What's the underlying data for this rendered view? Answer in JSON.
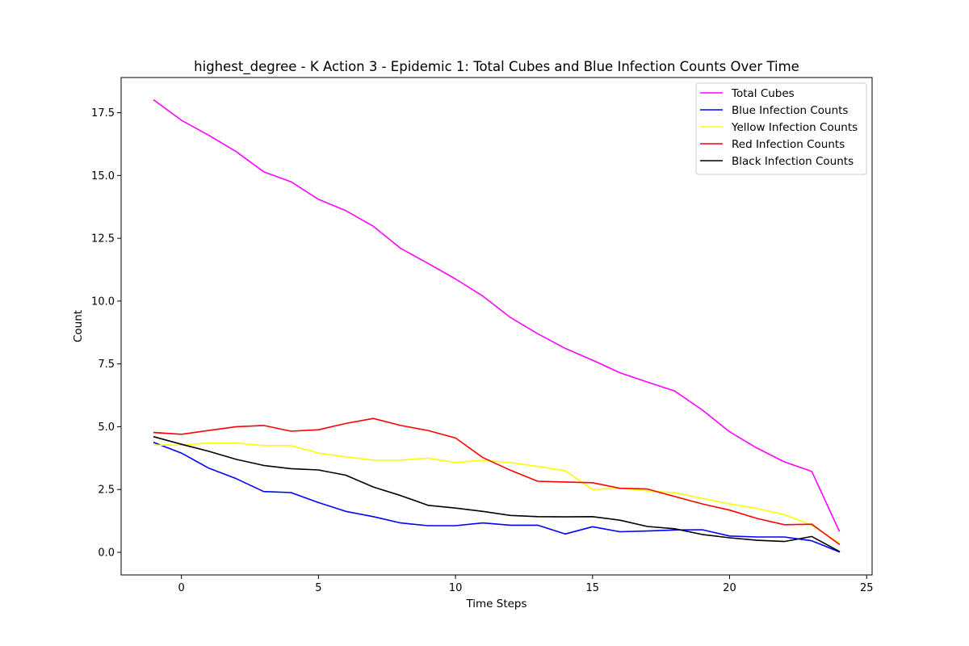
{
  "chart_data": {
    "type": "line",
    "title": "highest_degree - K Action 3 - Epidemic 1: Total Cubes and Blue Infection Counts Over Time",
    "xlabel": "Time Steps",
    "ylabel": "Count",
    "xlim": [
      -2.2,
      25.2
    ],
    "ylim": [
      -0.9,
      18.9
    ],
    "xticks": [
      0,
      5,
      10,
      15,
      20,
      25
    ],
    "yticks": [
      0.0,
      2.5,
      5.0,
      7.5,
      10.0,
      12.5,
      15.0,
      17.5
    ],
    "xtick_labels": [
      "0",
      "5",
      "10",
      "15",
      "20",
      "25"
    ],
    "ytick_labels": [
      "0.0",
      "2.5",
      "5.0",
      "7.5",
      "10.0",
      "12.5",
      "15.0",
      "17.5"
    ],
    "legend_position": "top-right",
    "grid": false,
    "x": [
      -1,
      0,
      1,
      2,
      3,
      4,
      5,
      6,
      7,
      8,
      9,
      10,
      11,
      12,
      13,
      14,
      15,
      16,
      17,
      18,
      19,
      20,
      21,
      22,
      23,
      24
    ],
    "series": [
      {
        "name": "Total Cubes",
        "color": "#ff00ff",
        "values": [
          18.0,
          17.2,
          16.6,
          15.95,
          15.15,
          14.75,
          14.05,
          13.6,
          12.98,
          12.1,
          11.5,
          10.88,
          10.2,
          9.35,
          8.7,
          8.12,
          7.65,
          7.15,
          6.78,
          6.42,
          5.67,
          4.8,
          4.15,
          3.6,
          3.22,
          0.85
        ]
      },
      {
        "name": "Blue Infection Counts",
        "color": "#0000ff",
        "values": [
          4.37,
          3.95,
          3.35,
          2.93,
          2.42,
          2.38,
          1.98,
          1.63,
          1.42,
          1.17,
          1.06,
          1.06,
          1.17,
          1.08,
          1.08,
          0.73,
          1.02,
          0.82,
          0.85,
          0.89,
          0.9,
          0.65,
          0.61,
          0.61,
          0.46,
          0.02
        ]
      },
      {
        "name": "Yellow Infection Counts",
        "color": "#ffff00",
        "values": [
          4.27,
          4.27,
          4.35,
          4.35,
          4.25,
          4.25,
          3.95,
          3.8,
          3.67,
          3.67,
          3.75,
          3.57,
          3.67,
          3.57,
          3.42,
          3.25,
          2.5,
          2.56,
          2.45,
          2.37,
          2.15,
          1.93,
          1.75,
          1.5,
          1.08,
          0.37
        ]
      },
      {
        "name": "Red Infection Counts",
        "color": "#ff0000",
        "values": [
          4.77,
          4.7,
          4.85,
          5.0,
          5.05,
          4.82,
          4.88,
          5.13,
          5.33,
          5.05,
          4.85,
          4.55,
          3.77,
          3.27,
          2.83,
          2.8,
          2.77,
          2.55,
          2.52,
          2.22,
          1.93,
          1.68,
          1.35,
          1.1,
          1.12,
          0.32
        ]
      },
      {
        "name": "Black Infection Counts",
        "color": "#000000",
        "values": [
          4.6,
          4.3,
          4.02,
          3.7,
          3.46,
          3.33,
          3.28,
          3.07,
          2.6,
          2.26,
          1.87,
          1.76,
          1.63,
          1.47,
          1.42,
          1.41,
          1.42,
          1.28,
          1.03,
          0.94,
          0.71,
          0.58,
          0.48,
          0.43,
          0.63,
          0.04
        ]
      }
    ]
  }
}
